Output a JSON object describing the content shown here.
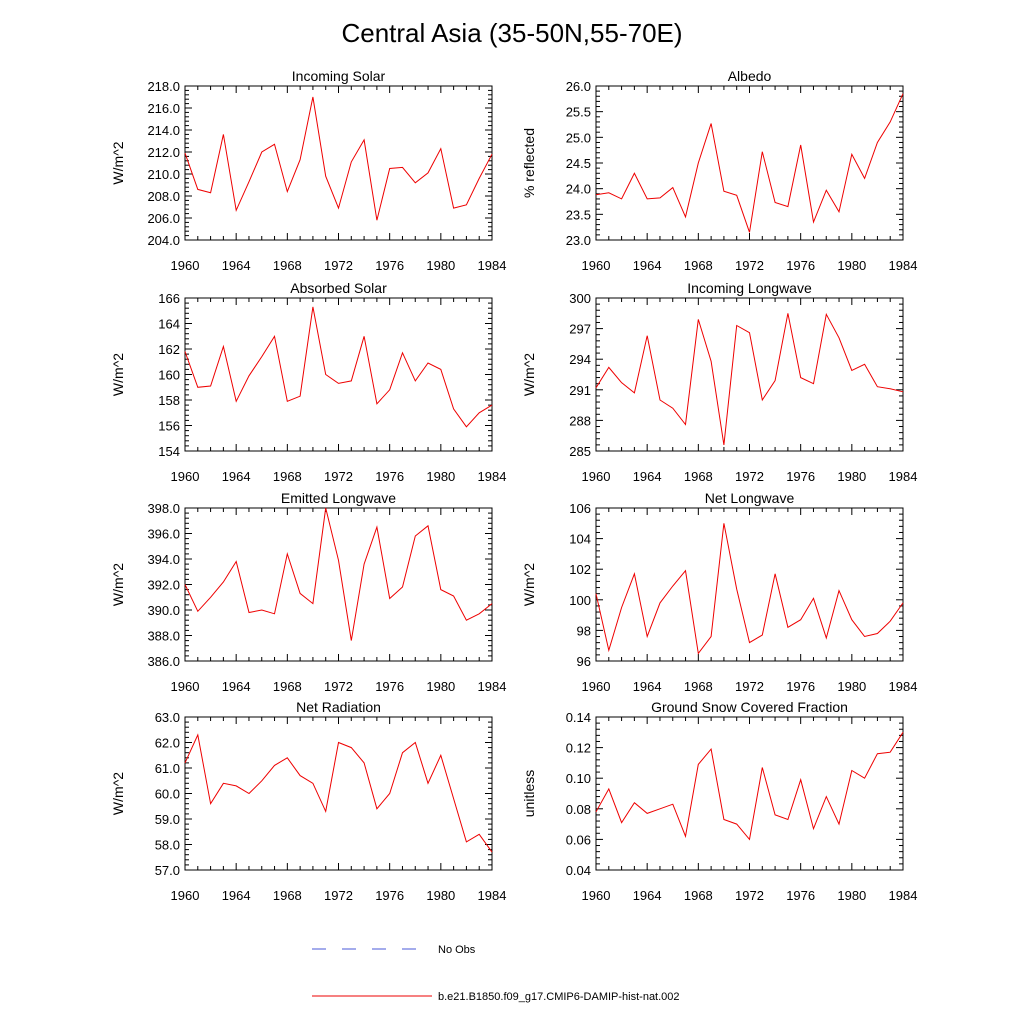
{
  "figure_title": "Central Asia (35-50N,55-70E)",
  "legend": [
    {
      "label": "No Obs",
      "color": "#4a5ad8",
      "style": "dashed"
    },
    {
      "label": "b.e21.B1850.f09_g17.CMIP6-DAMIP-hist-nat.002",
      "color": "#ee0000",
      "style": "solid"
    }
  ],
  "colors": {
    "series": "#ee0000",
    "axes": "#000000"
  },
  "chart_data": [
    {
      "type": "line",
      "title": "Incoming Solar",
      "ylabel": "W/m^2",
      "xlim": [
        1960,
        1984
      ],
      "xticks": [
        "1960",
        "1964",
        "1968",
        "1972",
        "1976",
        "1980",
        "1984"
      ],
      "ylim": [
        204,
        218
      ],
      "yticks": [
        "204.0",
        "206.0",
        "208.0",
        "210.0",
        "212.0",
        "214.0",
        "216.0",
        "218.0"
      ],
      "x": [
        1960,
        1961,
        1962,
        1963,
        1964,
        1965,
        1966,
        1967,
        1968,
        1969,
        1970,
        1971,
        1972,
        1973,
        1974,
        1975,
        1976,
        1977,
        1978,
        1979,
        1980,
        1981,
        1982,
        1983,
        1984
      ],
      "series": [
        {
          "values": [
            211.9,
            208.6,
            208.3,
            213.6,
            206.7,
            209.3,
            212.0,
            212.7,
            208.4,
            211.3,
            217.0,
            209.8,
            206.9,
            211.1,
            213.1,
            205.8,
            210.5,
            210.6,
            209.2,
            210.1,
            212.3,
            206.9,
            207.2,
            209.6,
            211.8
          ]
        }
      ]
    },
    {
      "type": "line",
      "title": "Albedo",
      "ylabel": "% reflected",
      "xlim": [
        1960,
        1984
      ],
      "xticks": [
        "1960",
        "1964",
        "1968",
        "1972",
        "1976",
        "1980",
        "1984"
      ],
      "ylim": [
        23.0,
        26.0
      ],
      "yticks": [
        "23.0",
        "23.5",
        "24.0",
        "24.5",
        "25.0",
        "25.5",
        "26.0"
      ],
      "x": [
        1960,
        1961,
        1962,
        1963,
        1964,
        1965,
        1966,
        1967,
        1968,
        1969,
        1970,
        1971,
        1972,
        1973,
        1974,
        1975,
        1976,
        1977,
        1978,
        1979,
        1980,
        1981,
        1982,
        1983,
        1984
      ],
      "series": [
        {
          "values": [
            23.88,
            23.92,
            23.8,
            24.3,
            23.8,
            23.82,
            24.02,
            23.45,
            24.5,
            25.27,
            23.95,
            23.87,
            23.15,
            24.72,
            23.73,
            23.65,
            24.85,
            23.35,
            23.97,
            23.55,
            24.67,
            24.2,
            24.9,
            25.3,
            25.85
          ]
        }
      ]
    },
    {
      "type": "line",
      "title": "Absorbed Solar",
      "ylabel": "W/m^2",
      "xlim": [
        1960,
        1984
      ],
      "xticks": [
        "1960",
        "1964",
        "1968",
        "1972",
        "1976",
        "1980",
        "1984"
      ],
      "ylim": [
        154,
        166
      ],
      "yticks": [
        "154",
        "156",
        "158",
        "160",
        "162",
        "164",
        "166"
      ],
      "x": [
        1960,
        1961,
        1962,
        1963,
        1964,
        1965,
        1966,
        1967,
        1968,
        1969,
        1970,
        1971,
        1972,
        1973,
        1974,
        1975,
        1976,
        1977,
        1978,
        1979,
        1980,
        1981,
        1982,
        1983,
        1984
      ],
      "series": [
        {
          "values": [
            161.8,
            159.0,
            159.1,
            162.2,
            157.9,
            159.9,
            161.4,
            163.0,
            157.9,
            158.3,
            165.3,
            160.0,
            159.3,
            159.5,
            163.0,
            157.7,
            158.8,
            161.7,
            159.5,
            160.9,
            160.4,
            157.3,
            155.9,
            157.0,
            157.6
          ]
        }
      ]
    },
    {
      "type": "line",
      "title": "Incoming Longwave",
      "ylabel": "W/m^2",
      "xlim": [
        1960,
        1984
      ],
      "xticks": [
        "1960",
        "1964",
        "1968",
        "1972",
        "1976",
        "1980",
        "1984"
      ],
      "ylim": [
        285,
        300
      ],
      "yticks": [
        "285",
        "288",
        "291",
        "294",
        "297",
        "300"
      ],
      "x": [
        1960,
        1961,
        1962,
        1963,
        1964,
        1965,
        1966,
        1967,
        1968,
        1969,
        1970,
        1971,
        1972,
        1973,
        1974,
        1975,
        1976,
        1977,
        1978,
        1979,
        1980,
        1981,
        1982,
        1983,
        1984
      ],
      "series": [
        {
          "values": [
            291.2,
            293.2,
            291.7,
            290.7,
            296.3,
            290.0,
            289.2,
            287.6,
            297.9,
            293.8,
            285.6,
            297.3,
            296.6,
            290.0,
            291.9,
            298.5,
            292.2,
            291.6,
            298.4,
            296.1,
            292.9,
            293.5,
            291.3,
            291.1,
            290.8
          ]
        }
      ]
    },
    {
      "type": "line",
      "title": "Emitted Longwave",
      "ylabel": "W/m^2",
      "xlim": [
        1960,
        1984
      ],
      "xticks": [
        "1960",
        "1964",
        "1968",
        "1972",
        "1976",
        "1980",
        "1984"
      ],
      "ylim": [
        386,
        398
      ],
      "yticks": [
        "386.0",
        "388.0",
        "390.0",
        "392.0",
        "394.0",
        "396.0",
        "398.0"
      ],
      "x": [
        1960,
        1961,
        1962,
        1963,
        1964,
        1965,
        1966,
        1967,
        1968,
        1969,
        1970,
        1971,
        1972,
        1973,
        1974,
        1975,
        1976,
        1977,
        1978,
        1979,
        1980,
        1981,
        1982,
        1983,
        1984
      ],
      "series": [
        {
          "values": [
            392.0,
            389.9,
            391.0,
            392.2,
            393.8,
            389.8,
            390.0,
            389.7,
            394.4,
            391.3,
            390.5,
            398.0,
            393.9,
            387.6,
            393.6,
            396.5,
            390.9,
            391.8,
            395.8,
            396.6,
            391.6,
            391.1,
            389.2,
            389.7,
            390.5
          ]
        }
      ]
    },
    {
      "type": "line",
      "title": "Net Longwave",
      "ylabel": "W/m^2",
      "xlim": [
        1960,
        1984
      ],
      "xticks": [
        "1960",
        "1964",
        "1968",
        "1972",
        "1976",
        "1980",
        "1984"
      ],
      "ylim": [
        96,
        106
      ],
      "yticks": [
        "96",
        "98",
        "100",
        "102",
        "104",
        "106"
      ],
      "x": [
        1960,
        1961,
        1962,
        1963,
        1964,
        1965,
        1966,
        1967,
        1968,
        1969,
        1970,
        1971,
        1972,
        1973,
        1974,
        1975,
        1976,
        1977,
        1978,
        1979,
        1980,
        1981,
        1982,
        1983,
        1984
      ],
      "series": [
        {
          "values": [
            100.4,
            96.7,
            99.5,
            101.7,
            97.6,
            99.8,
            100.9,
            101.9,
            96.5,
            97.6,
            105.0,
            100.7,
            97.2,
            97.7,
            101.7,
            98.2,
            98.7,
            100.1,
            97.5,
            100.6,
            98.7,
            97.6,
            97.8,
            98.6,
            99.8
          ]
        }
      ]
    },
    {
      "type": "line",
      "title": "Net Radiation",
      "ylabel": "W/m^2",
      "xlim": [
        1960,
        1984
      ],
      "xticks": [
        "1960",
        "1964",
        "1968",
        "1972",
        "1976",
        "1980",
        "1984"
      ],
      "ylim": [
        57,
        63
      ],
      "yticks": [
        "57.0",
        "58.0",
        "59.0",
        "60.0",
        "61.0",
        "62.0",
        "63.0"
      ],
      "x": [
        1960,
        1961,
        1962,
        1963,
        1964,
        1965,
        1966,
        1967,
        1968,
        1969,
        1970,
        1971,
        1972,
        1973,
        1974,
        1975,
        1976,
        1977,
        1978,
        1979,
        1980,
        1981,
        1982,
        1983,
        1984
      ],
      "series": [
        {
          "values": [
            61.2,
            62.3,
            59.6,
            60.4,
            60.3,
            60.0,
            60.5,
            61.1,
            61.4,
            60.7,
            60.4,
            59.3,
            62.0,
            61.8,
            61.2,
            59.4,
            60.0,
            61.6,
            62.0,
            60.4,
            61.5,
            59.8,
            58.1,
            58.4,
            57.7
          ]
        }
      ]
    },
    {
      "type": "line",
      "title": "Ground Snow Covered Fraction",
      "ylabel": "unitless",
      "xlim": [
        1960,
        1984
      ],
      "xticks": [
        "1960",
        "1964",
        "1968",
        "1972",
        "1976",
        "1980",
        "1984"
      ],
      "ylim": [
        0.04,
        0.14
      ],
      "yticks": [
        "0.04",
        "0.06",
        "0.08",
        "0.10",
        "0.12",
        "0.14"
      ],
      "x": [
        1960,
        1961,
        1962,
        1963,
        1964,
        1965,
        1966,
        1967,
        1968,
        1969,
        1970,
        1971,
        1972,
        1973,
        1974,
        1975,
        1976,
        1977,
        1978,
        1979,
        1980,
        1981,
        1982,
        1983,
        1984
      ],
      "series": [
        {
          "values": [
            0.078,
            0.093,
            0.071,
            0.084,
            0.077,
            0.08,
            0.083,
            0.062,
            0.109,
            0.119,
            0.073,
            0.07,
            0.06,
            0.107,
            0.076,
            0.073,
            0.099,
            0.067,
            0.088,
            0.07,
            0.105,
            0.1,
            0.116,
            0.117,
            0.13
          ]
        }
      ]
    }
  ]
}
